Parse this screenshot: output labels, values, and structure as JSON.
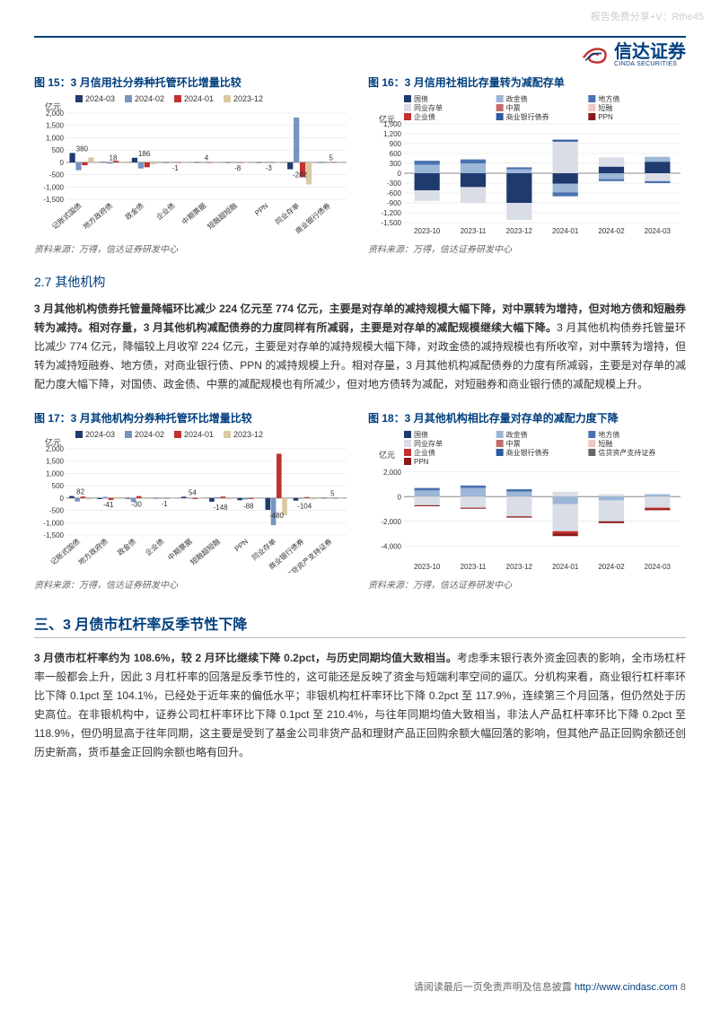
{
  "watermark": "报告免费分享+V：Rthe45",
  "logo": {
    "cn": "信达证券",
    "en": "CINDA SECURITIES"
  },
  "chart15": {
    "title": "图 15：3 月信用社分券种托管环比增量比较",
    "type": "bar",
    "y_unit": "亿元",
    "ylim": [
      -1500,
      2000
    ],
    "yticks": [
      -1500,
      -1000,
      -500,
      0,
      500,
      1000,
      1500,
      2000
    ],
    "categories": [
      "记账式国债",
      "地方政府债",
      "政金债",
      "企业债",
      "中期票据",
      "短融超短融",
      "PPN",
      "同业存单",
      "商业银行债券"
    ],
    "series": [
      {
        "name": "2024-03",
        "color": "#1f3a6e",
        "values": [
          380,
          18,
          186,
          -1,
          4,
          -8,
          -3,
          -282,
          5
        ]
      },
      {
        "name": "2024-02",
        "color": "#7794c0",
        "values": [
          -320,
          -50,
          -250,
          -3,
          -2,
          -5,
          -4,
          1820,
          -10
        ]
      },
      {
        "name": "2024-01",
        "color": "#c23030",
        "values": [
          -120,
          60,
          -200,
          -2,
          1,
          -2,
          -3,
          -600,
          4
        ]
      },
      {
        "name": "2023-12",
        "color": "#d9c9a0",
        "values": [
          200,
          -30,
          -80,
          -4,
          -3,
          -6,
          -2,
          -900,
          -6
        ]
      }
    ],
    "label_values": [
      380,
      18,
      186,
      -1,
      4,
      -8,
      -3,
      -282,
      5
    ],
    "source": "资料来源：万得，信达证券研发中心"
  },
  "chart16": {
    "title": "图 16：3 月信用社相比存量转为减配存单",
    "type": "stacked-bar",
    "y_unit": "亿元",
    "ylim": [
      -1500,
      1500
    ],
    "yticks": [
      -1500,
      -1200,
      -900,
      -600,
      -300,
      0,
      300,
      600,
      900,
      1200,
      1500
    ],
    "categories": [
      "2023-10",
      "2023-11",
      "2023-12",
      "2024-01",
      "2024-02",
      "2024-03"
    ],
    "series": [
      {
        "name": "国债",
        "color": "#1f3a6e"
      },
      {
        "name": "政金债",
        "color": "#9cb6d8"
      },
      {
        "name": "地方债",
        "color": "#4a72b0"
      },
      {
        "name": "同业存单",
        "color": "#d9dde6"
      },
      {
        "name": "中票",
        "color": "#c76a6a"
      },
      {
        "name": "短融",
        "color": "#f2c4c4"
      },
      {
        "name": "企业债",
        "color": "#c23030"
      },
      {
        "name": "商业银行债券",
        "color": "#2e5aa0"
      },
      {
        "name": "PPN",
        "color": "#8a1a1a"
      }
    ],
    "stacks_pos": [
      [
        {
          "c": "#9cb6d8",
          "v": 260
        },
        {
          "c": "#4a72b0",
          "v": 120
        }
      ],
      [
        {
          "c": "#9cb6d8",
          "v": 300
        },
        {
          "c": "#4a72b0",
          "v": 120
        }
      ],
      [
        {
          "c": "#9cb6d8",
          "v": 120
        },
        {
          "c": "#4a72b0",
          "v": 60
        }
      ],
      [
        {
          "c": "#d9dde6",
          "v": 960
        },
        {
          "c": "#2e5aa0",
          "v": 60
        }
      ],
      [
        {
          "c": "#1f3a6e",
          "v": 200
        },
        {
          "c": "#d9dde6",
          "v": 280
        }
      ],
      [
        {
          "c": "#1f3a6e",
          "v": 350
        },
        {
          "c": "#9cb6d8",
          "v": 150
        }
      ]
    ],
    "stacks_neg": [
      [
        {
          "c": "#1f3a6e",
          "v": -520
        },
        {
          "c": "#d9dde6",
          "v": -320
        }
      ],
      [
        {
          "c": "#1f3a6e",
          "v": -420
        },
        {
          "c": "#d9dde6",
          "v": -480
        }
      ],
      [
        {
          "c": "#1f3a6e",
          "v": -900
        },
        {
          "c": "#d9dde6",
          "v": -520
        }
      ],
      [
        {
          "c": "#1f3a6e",
          "v": -320
        },
        {
          "c": "#9cb6d8",
          "v": -260
        },
        {
          "c": "#4a72b0",
          "v": -120
        }
      ],
      [
        {
          "c": "#9cb6d8",
          "v": -180
        },
        {
          "c": "#4a72b0",
          "v": -60
        }
      ],
      [
        {
          "c": "#d9dde6",
          "v": -240
        },
        {
          "c": "#4a72b0",
          "v": -60
        }
      ]
    ],
    "source": "资料来源：万得，信达证券研发中心"
  },
  "section27_heading": "2.7 其他机构",
  "para27": {
    "bold": "3 月其他机构债券托管量降幅环比减少 224 亿元至 774 亿元，主要是对存单的减持规模大幅下降，对中票转为增持，但对地方债和短融券转为减持。相对存量，3 月其他机构减配债券的力度同样有所减弱，主要是对存单的减配规模继续大幅下降。",
    "rest": "3 月其他机构债券托管量环比减少 774 亿元，降幅较上月收窄 224 亿元，主要是对存单的减持规模大幅下降，对政金债的减持规模也有所收窄，对中票转为增持，但转为减持短融券、地方债，对商业银行债、PPN 的减持规模上升。相对存量，3 月其他机构减配债券的力度有所减弱，主要是对存单的减配力度大幅下降，对国债、政金债、中票的减配规模也有所减少，但对地方债转为减配，对短融券和商业银行债的减配规模上升。"
  },
  "chart17": {
    "title": "图 17：3 月其他机构分券种托管环比增量比较",
    "type": "bar",
    "y_unit": "亿元",
    "ylim": [
      -1500,
      2000
    ],
    "yticks": [
      -1500,
      -1000,
      -500,
      0,
      500,
      1000,
      1500,
      2000
    ],
    "categories": [
      "记账式国债",
      "地方政府债",
      "政金债",
      "企业债",
      "中期票据",
      "短融超短融",
      "PPN",
      "同业存单",
      "商业银行债券",
      "信贷资产支持证券"
    ],
    "series": [
      {
        "name": "2024-03",
        "color": "#1f3a6e",
        "values": [
          82,
          -41,
          -30,
          -1,
          54,
          -148,
          -88,
          -480,
          -104,
          5
        ]
      },
      {
        "name": "2024-02",
        "color": "#7794c0",
        "values": [
          -140,
          50,
          -160,
          -3,
          -20,
          30,
          -60,
          -1100,
          -30,
          -10
        ]
      },
      {
        "name": "2024-01",
        "color": "#c23030",
        "values": [
          60,
          -80,
          80,
          -4,
          -40,
          60,
          -40,
          1800,
          40,
          -8
        ]
      },
      {
        "name": "2023-12",
        "color": "#d9c9a0",
        "values": [
          -60,
          40,
          -40,
          -6,
          10,
          -50,
          -30,
          -700,
          -60,
          -5
        ]
      }
    ],
    "label_values": [
      82,
      -41,
      -30,
      -1,
      54,
      -148,
      -88,
      -480,
      -104,
      5
    ],
    "source": "资料来源：万得，信达证券研发中心"
  },
  "chart18": {
    "title": "图 18：3 月其他机构相比存量对存单的减配力度下降",
    "type": "stacked-bar",
    "y_unit": "亿元",
    "ylim": [
      -5000,
      3000
    ],
    "yticks": [
      -4000,
      -2000,
      0,
      2000
    ],
    "categories": [
      "2023-10",
      "2023-11",
      "2023-12",
      "2024-01",
      "2024-02",
      "2024-03"
    ],
    "series": [
      {
        "name": "国债",
        "color": "#1f3a6e"
      },
      {
        "name": "政金债",
        "color": "#9cb6d8"
      },
      {
        "name": "地方债",
        "color": "#4a72b0"
      },
      {
        "name": "同业存单",
        "color": "#d9dde6"
      },
      {
        "name": "中票",
        "color": "#c76a6a"
      },
      {
        "name": "短融",
        "color": "#f2c4c4"
      },
      {
        "name": "企业债",
        "color": "#c23030"
      },
      {
        "name": "商业银行债券",
        "color": "#2e5aa0"
      },
      {
        "name": "信贷资产支持证券",
        "color": "#666666"
      },
      {
        "name": "PPN",
        "color": "#8a1a1a"
      }
    ],
    "stacks_pos": [
      [
        {
          "c": "#9cb6d8",
          "v": 500
        },
        {
          "c": "#4a72b0",
          "v": 200
        }
      ],
      [
        {
          "c": "#9cb6d8",
          "v": 700
        },
        {
          "c": "#4a72b0",
          "v": 200
        }
      ],
      [
        {
          "c": "#9cb6d8",
          "v": 400
        },
        {
          "c": "#4a72b0",
          "v": 200
        }
      ],
      [
        {
          "c": "#d9dde6",
          "v": 400
        }
      ],
      [
        {
          "c": "#d9dde6",
          "v": 200
        }
      ],
      [
        {
          "c": "#9cb6d8",
          "v": 200
        }
      ]
    ],
    "stacks_neg": [
      [
        {
          "c": "#d9dde6",
          "v": -700
        },
        {
          "c": "#8a1a1a",
          "v": -80
        }
      ],
      [
        {
          "c": "#d9dde6",
          "v": -900
        },
        {
          "c": "#8a1a1a",
          "v": -80
        }
      ],
      [
        {
          "c": "#d9dde6",
          "v": -1600
        },
        {
          "c": "#8a1a1a",
          "v": -100
        }
      ],
      [
        {
          "c": "#9cb6d8",
          "v": -600
        },
        {
          "c": "#d9dde6",
          "v": -2200
        },
        {
          "c": "#c23030",
          "v": -200
        },
        {
          "c": "#8a1a1a",
          "v": -200
        }
      ],
      [
        {
          "c": "#9cb6d8",
          "v": -300
        },
        {
          "c": "#d9dde6",
          "v": -1700
        },
        {
          "c": "#8a1a1a",
          "v": -150
        }
      ],
      [
        {
          "c": "#d9dde6",
          "v": -900
        },
        {
          "c": "#c23030",
          "v": -100
        },
        {
          "c": "#8a1a1a",
          "v": -100
        }
      ]
    ],
    "source": "资料来源：万得，信达证券研发中心"
  },
  "section3_heading": "三、3 月债市杠杆率反季节性下降",
  "para3": {
    "bold": "3 月债市杠杆率约为 108.6%，较 2 月环比继续下降 0.2pct，与历史同期均值大致相当。",
    "rest": "考虑季末银行表外资金回表的影响，全市场杠杆率一般都会上升，因此 3 月杠杆率的回落是反季节性的，这可能还是反映了资金与短端利率空间的逼仄。分机构来看，商业银行杠杆率环比下降 0.1pct 至 104.1%，已经处于近年来的偏低水平；非银机构杠杆率环比下降 0.2pct 至 117.9%，连续第三个月回落，但仍然处于历史高位。在非银机构中，证券公司杠杆率环比下降 0.1pct 至 210.4%，与往年同期均值大致相当，非法人产品杠杆率环比下降 0.2pct 至 118.9%，但仍明显高于往年同期，这主要是受到了基金公司非货产品和理财产品正回购余额大幅回落的影响，但其他产品正回购余额还创历史新高，货币基金正回购余额也略有回升。"
  },
  "footer": {
    "text": "请阅读最后一页免责声明及信息披露 ",
    "url": "http://www.cindasc.com",
    "page": " 8"
  },
  "chart_style": {
    "axis_color": "#888888",
    "grid_color": "#dddddd",
    "tick_fontsize": 8,
    "cat_fontsize": 8,
    "legend_fontsize": 9,
    "bar_group_width": 0.8
  }
}
